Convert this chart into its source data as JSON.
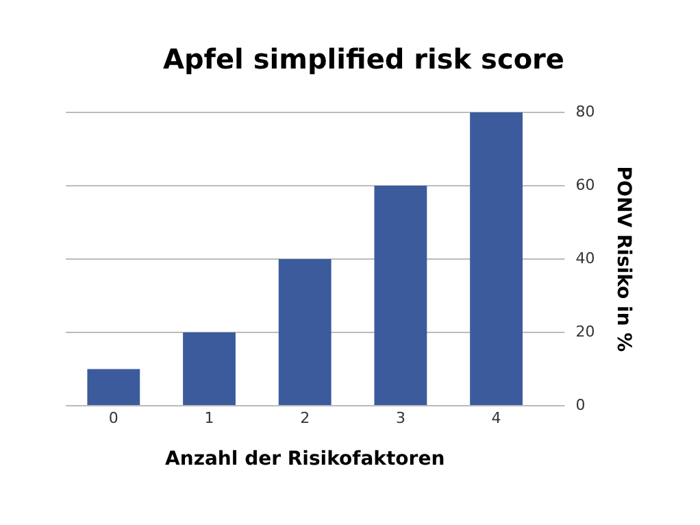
{
  "chart_data": {
    "type": "bar",
    "title": "Apfel simplified risk score",
    "xlabel": "Anzahl der Risikofaktoren",
    "ylabel": "PONV Risiko in %",
    "categories": [
      "0",
      "1",
      "2",
      "3",
      "4"
    ],
    "values": [
      10,
      20,
      40,
      60,
      80
    ],
    "color": "#3b5b9d",
    "ylim": [
      0,
      80
    ],
    "yticks": [
      0,
      20,
      40,
      60,
      80
    ],
    "grid": "y",
    "legend": false
  }
}
